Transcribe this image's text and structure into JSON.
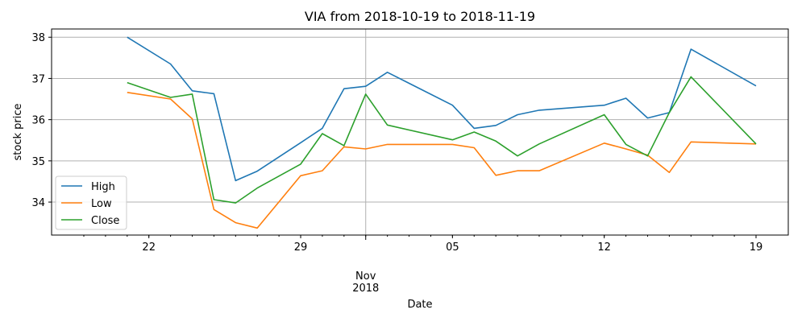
{
  "chart_data": {
    "type": "line",
    "title": "VIA from 2018-10-19 to 2018-11-19",
    "xlabel": "Date",
    "ylabel": "stock price",
    "x": [
      "2018-10-21",
      "2018-10-22",
      "2018-10-23",
      "2018-10-24",
      "2018-10-25",
      "2018-10-26",
      "2018-10-27",
      "2018-10-28",
      "2018-10-29",
      "2018-10-30",
      "2018-10-31",
      "2018-11-01",
      "2018-11-02",
      "2018-11-03",
      "2018-11-04",
      "2018-11-05",
      "2018-11-06",
      "2018-11-07",
      "2018-11-08",
      "2018-11-09",
      "2018-11-10",
      "2018-11-11",
      "2018-11-12",
      "2018-11-13",
      "2018-11-14",
      "2018-11-15",
      "2018-11-16",
      "2018-11-17",
      "2018-11-18",
      "2018-11-19"
    ],
    "series": [
      {
        "name": "High",
        "color": "#1f77b4",
        "values": [
          38.0,
          37.35,
          36.7,
          36.63,
          34.52,
          34.75,
          35.44,
          35.79,
          36.75,
          36.81,
          37.15,
          36.35,
          35.79,
          35.86,
          36.12,
          36.23,
          36.35,
          36.52,
          36.04,
          36.17,
          37.71,
          36.82
        ]
      },
      {
        "name": "Low",
        "color": "#ff7f0e",
        "values": [
          36.66,
          36.5,
          36.02,
          33.82,
          33.5,
          33.37,
          34.64,
          34.76,
          35.34,
          35.29,
          35.4,
          35.4,
          35.32,
          34.65,
          34.76,
          34.76,
          35.43,
          35.29,
          35.14,
          34.72,
          35.46,
          35.41
        ]
      },
      {
        "name": "Close",
        "color": "#2ca02c",
        "values": [
          36.9,
          36.54,
          36.62,
          34.06,
          33.98,
          34.34,
          34.92,
          35.66,
          35.37,
          36.62,
          35.87,
          35.51,
          35.7,
          35.48,
          35.12,
          35.41,
          36.12,
          35.4,
          35.12,
          36.17,
          37.04,
          35.41
        ]
      }
    ],
    "dates": [
      "2018-10-21",
      "2018-10-23",
      "2018-10-24",
      "2018-10-25",
      "2018-10-26",
      "2018-10-27",
      "2018-10-29",
      "2018-10-30",
      "2018-10-31",
      "2018-11-01",
      "2018-11-02",
      "2018-11-05",
      "2018-11-06",
      "2018-11-07",
      "2018-11-08",
      "2018-11-09",
      "2018-11-12",
      "2018-11-13",
      "2018-11-14",
      "2018-11-15",
      "2018-11-16",
      "2018-11-19"
    ],
    "xlim": [
      "2018-10-19",
      "2018-11-19"
    ],
    "ylim": [
      33.2,
      38.2
    ],
    "yticks": [
      34,
      35,
      36,
      37,
      38
    ],
    "xticks": [
      {
        "date": "2018-10-22",
        "label": "22"
      },
      {
        "date": "2018-10-29",
        "label": "29"
      },
      {
        "date": "2018-11-05",
        "label": "05"
      },
      {
        "date": "2018-11-12",
        "label": "12"
      },
      {
        "date": "2018-11-19",
        "label": "19"
      }
    ],
    "major_xtick": {
      "date": "2018-11-01",
      "label_line1": "Nov",
      "label_line2": "2018"
    },
    "grid": true,
    "legend_position": "lower-left"
  }
}
